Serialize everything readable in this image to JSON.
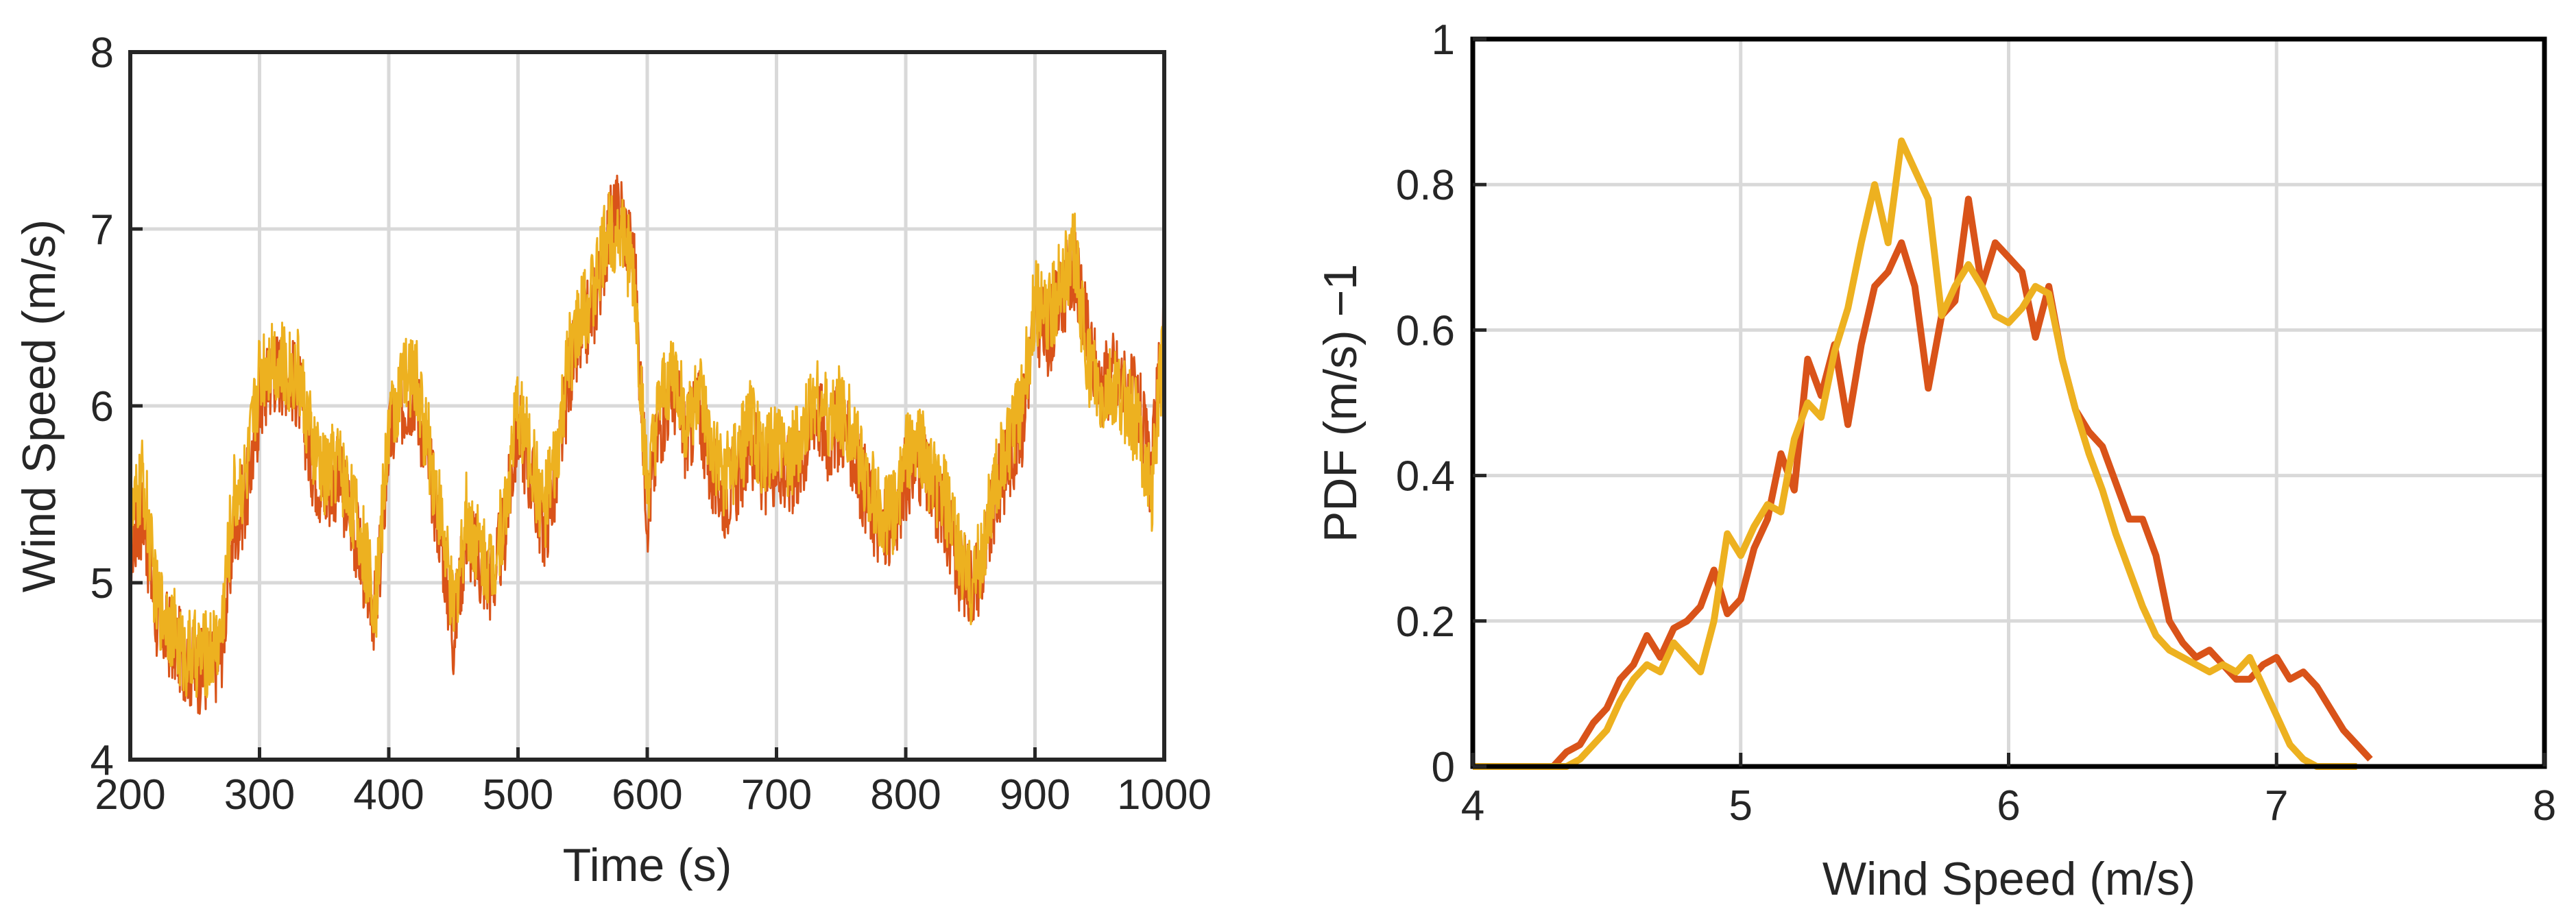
{
  "chart_data": [
    {
      "type": "line",
      "title": "",
      "xlabel": "Time (s)",
      "ylabel": "Wind Speed (m/s)",
      "xlim": [
        200,
        1000
      ],
      "ylim": [
        4,
        8
      ],
      "xticks": [
        200,
        300,
        400,
        500,
        600,
        700,
        800,
        900,
        1000
      ],
      "yticks": [
        4,
        5,
        6,
        7,
        8
      ],
      "grid": true,
      "legend": "none",
      "series": [
        {
          "color": "#D95319",
          "x": [
            200,
            210,
            220,
            230,
            240,
            250,
            260,
            270,
            280,
            290,
            300,
            310,
            320,
            330,
            340,
            350,
            360,
            370,
            380,
            390,
            400,
            410,
            420,
            430,
            440,
            450,
            460,
            470,
            480,
            490,
            500,
            510,
            520,
            530,
            540,
            550,
            560,
            570,
            580,
            590,
            600,
            610,
            620,
            630,
            640,
            650,
            660,
            670,
            680,
            690,
            700,
            710,
            720,
            730,
            740,
            750,
            760,
            770,
            780,
            790,
            800,
            810,
            820,
            830,
            840,
            850,
            860,
            870,
            880,
            890,
            900,
            910,
            920,
            930,
            940,
            950,
            960,
            970,
            980,
            990,
            1000
          ],
          "values": [
            5.2,
            5.4,
            4.8,
            4.7,
            4.6,
            4.5,
            4.5,
            4.6,
            5.3,
            5.5,
            6.0,
            6.2,
            6.2,
            6.1,
            5.7,
            5.5,
            5.6,
            5.4,
            5.1,
            4.8,
            5.8,
            6.0,
            6.1,
            5.7,
            5.3,
            4.7,
            5.3,
            5.1,
            5.0,
            5.3,
            5.9,
            5.6,
            5.3,
            5.6,
            6.2,
            6.4,
            6.6,
            7.0,
            7.1,
            6.8,
            5.4,
            5.9,
            6.1,
            5.8,
            6.0,
            5.6,
            5.5,
            5.6,
            5.8,
            5.6,
            5.7,
            5.6,
            5.7,
            6.0,
            5.8,
            5.9,
            5.7,
            5.5,
            5.3,
            5.3,
            5.6,
            5.7,
            5.5,
            5.4,
            5.1,
            5.0,
            5.1,
            5.5,
            5.7,
            5.9,
            6.5,
            6.4,
            6.6,
            6.8,
            6.4,
            6.1,
            6.2,
            6.1,
            6.0,
            5.6,
            6.5
          ]
        },
        {
          "color": "#EDB120",
          "x": [
            200,
            210,
            220,
            230,
            240,
            250,
            260,
            270,
            280,
            290,
            300,
            310,
            320,
            330,
            340,
            350,
            360,
            370,
            380,
            390,
            400,
            410,
            420,
            430,
            440,
            450,
            460,
            470,
            480,
            490,
            500,
            510,
            520,
            530,
            540,
            550,
            560,
            570,
            580,
            590,
            600,
            610,
            620,
            630,
            640,
            650,
            660,
            670,
            680,
            690,
            700,
            710,
            720,
            730,
            740,
            750,
            760,
            770,
            780,
            790,
            800,
            810,
            820,
            830,
            840,
            850,
            860,
            870,
            880,
            890,
            900,
            910,
            920,
            930,
            940,
            950,
            960,
            970,
            980,
            990,
            1000
          ],
          "values": [
            5.3,
            5.6,
            4.9,
            4.8,
            4.6,
            4.6,
            4.6,
            4.7,
            5.5,
            5.6,
            6.2,
            6.3,
            6.2,
            6.2,
            5.8,
            5.6,
            5.7,
            5.5,
            5.2,
            4.9,
            5.9,
            6.1,
            6.2,
            5.8,
            5.4,
            4.8,
            5.4,
            5.2,
            5.1,
            5.4,
            6.0,
            5.7,
            5.4,
            5.7,
            6.3,
            6.5,
            6.7,
            7.0,
            7.0,
            6.7,
            5.5,
            6.0,
            6.2,
            5.9,
            6.1,
            5.7,
            5.6,
            5.7,
            5.9,
            5.7,
            5.8,
            5.7,
            5.8,
            6.1,
            5.9,
            6.0,
            5.8,
            5.6,
            5.4,
            5.4,
            5.7,
            5.8,
            5.6,
            5.5,
            5.2,
            5.0,
            5.2,
            5.6,
            5.8,
            6.0,
            6.6,
            6.5,
            6.7,
            6.9,
            6.3,
            6.0,
            6.1,
            6.0,
            5.9,
            5.5,
            6.4
          ]
        }
      ]
    },
    {
      "type": "line",
      "title": "",
      "xlabel": "Wind Speed (m/s)",
      "ylabel": "PDF (m/s) −1",
      "xlim": [
        4,
        8
      ],
      "ylim": [
        0,
        1
      ],
      "xticks": [
        4,
        5,
        6,
        7,
        8
      ],
      "yticks": [
        0,
        0.2,
        0.4,
        0.6,
        0.8,
        1
      ],
      "ytick_labels": [
        "0",
        "0.2",
        "0.4",
        "0.6",
        "0.8",
        "1"
      ],
      "grid": true,
      "legend": "none",
      "series": [
        {
          "color": "#D95319",
          "x": [
            4.0,
            4.3,
            4.35,
            4.4,
            4.45,
            4.5,
            4.55,
            4.6,
            4.65,
            4.7,
            4.75,
            4.8,
            4.85,
            4.9,
            4.95,
            5.0,
            5.05,
            5.1,
            5.15,
            5.2,
            5.25,
            5.3,
            5.35,
            5.4,
            5.45,
            5.5,
            5.55,
            5.6,
            5.65,
            5.7,
            5.75,
            5.8,
            5.85,
            5.9,
            5.95,
            6.0,
            6.05,
            6.1,
            6.15,
            6.2,
            6.25,
            6.3,
            6.35,
            6.4,
            6.45,
            6.5,
            6.55,
            6.6,
            6.65,
            6.7,
            6.75,
            6.8,
            6.85,
            6.9,
            6.95,
            7.0,
            7.05,
            7.1,
            7.15,
            7.2,
            7.25,
            7.3,
            7.35
          ],
          "values": [
            0,
            0,
            0.02,
            0.03,
            0.06,
            0.08,
            0.12,
            0.14,
            0.18,
            0.15,
            0.19,
            0.2,
            0.22,
            0.27,
            0.21,
            0.23,
            0.3,
            0.34,
            0.43,
            0.38,
            0.56,
            0.51,
            0.58,
            0.47,
            0.58,
            0.66,
            0.68,
            0.72,
            0.66,
            0.52,
            0.62,
            0.64,
            0.78,
            0.66,
            0.72,
            0.7,
            0.68,
            0.59,
            0.66,
            0.56,
            0.49,
            0.46,
            0.44,
            0.39,
            0.34,
            0.34,
            0.29,
            0.2,
            0.17,
            0.15,
            0.16,
            0.14,
            0.12,
            0.12,
            0.14,
            0.15,
            0.12,
            0.13,
            0.11,
            0.08,
            0.05,
            0.03,
            0.01
          ]
        },
        {
          "color": "#EDB120",
          "x": [
            4.0,
            4.35,
            4.4,
            4.45,
            4.5,
            4.55,
            4.6,
            4.65,
            4.7,
            4.75,
            4.8,
            4.85,
            4.9,
            4.95,
            5.0,
            5.05,
            5.1,
            5.15,
            5.2,
            5.25,
            5.3,
            5.35,
            5.4,
            5.45,
            5.5,
            5.55,
            5.6,
            5.65,
            5.7,
            5.75,
            5.8,
            5.85,
            5.9,
            5.95,
            6.0,
            6.05,
            6.1,
            6.15,
            6.2,
            6.25,
            6.3,
            6.35,
            6.4,
            6.45,
            6.5,
            6.55,
            6.6,
            6.65,
            6.7,
            6.75,
            6.8,
            6.85,
            6.9,
            6.95,
            7.0,
            7.05,
            7.1,
            7.15,
            7.2,
            7.25,
            7.3
          ],
          "values": [
            0,
            0,
            0.01,
            0.03,
            0.05,
            0.09,
            0.12,
            0.14,
            0.13,
            0.17,
            0.15,
            0.13,
            0.2,
            0.32,
            0.29,
            0.33,
            0.36,
            0.35,
            0.45,
            0.5,
            0.48,
            0.57,
            0.63,
            0.72,
            0.8,
            0.72,
            0.86,
            0.82,
            0.78,
            0.62,
            0.66,
            0.69,
            0.66,
            0.62,
            0.61,
            0.63,
            0.66,
            0.65,
            0.56,
            0.49,
            0.43,
            0.38,
            0.32,
            0.27,
            0.22,
            0.18,
            0.16,
            0.15,
            0.14,
            0.13,
            0.14,
            0.13,
            0.15,
            0.11,
            0.07,
            0.03,
            0.01,
            0,
            0,
            0,
            0
          ]
        }
      ]
    }
  ]
}
